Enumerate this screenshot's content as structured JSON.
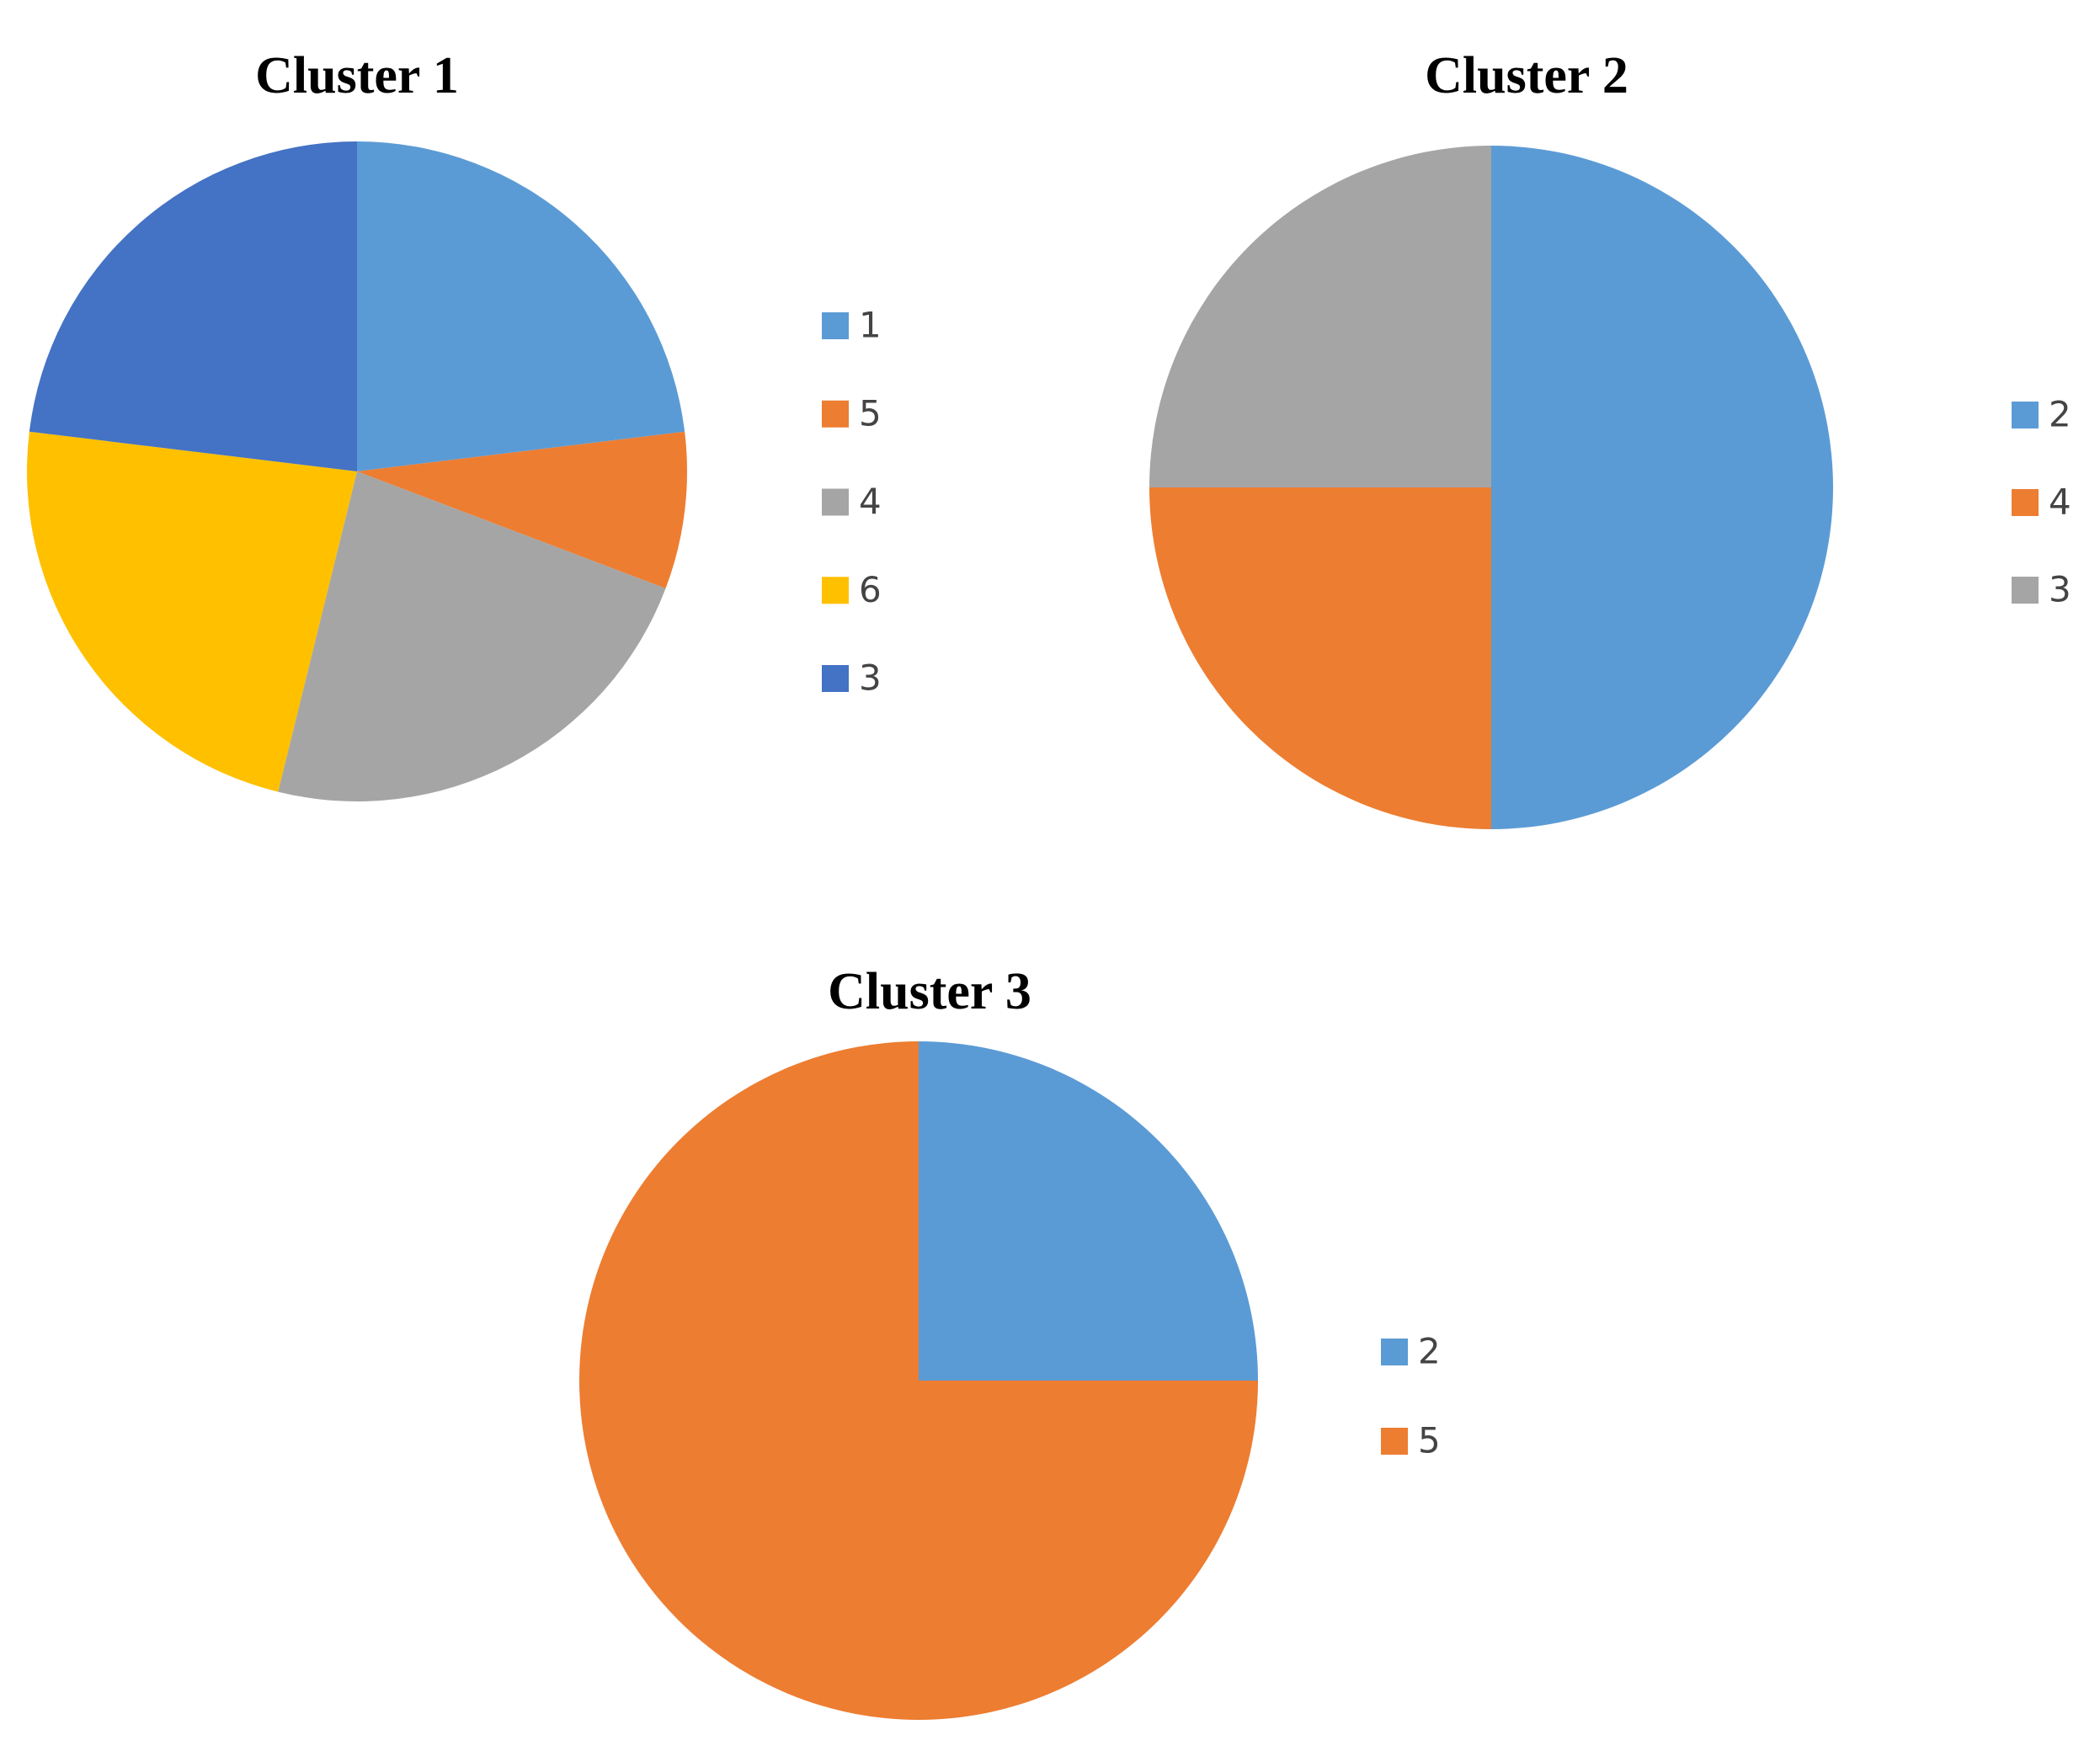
{
  "chart_data": [
    {
      "type": "pie",
      "title": "Cluster 1",
      "categories": [
        "1",
        "5",
        "4",
        "6",
        "3"
      ],
      "values": [
        3,
        1,
        3,
        3,
        3
      ],
      "colors": [
        "#5b9bd5",
        "#ed7d31",
        "#a5a5a5",
        "#ffc000",
        "#4472c4"
      ]
    },
    {
      "type": "pie",
      "title": "Cluster 2",
      "categories": [
        "2",
        "4",
        "3"
      ],
      "values": [
        2,
        1,
        1
      ],
      "colors": [
        "#5b9bd5",
        "#ed7d31",
        "#a5a5a5"
      ]
    },
    {
      "type": "pie",
      "title": "Cluster 3",
      "categories": [
        "2",
        "5"
      ],
      "values": [
        1,
        3
      ],
      "colors": [
        "#5b9bd5",
        "#ed7d31"
      ]
    }
  ]
}
